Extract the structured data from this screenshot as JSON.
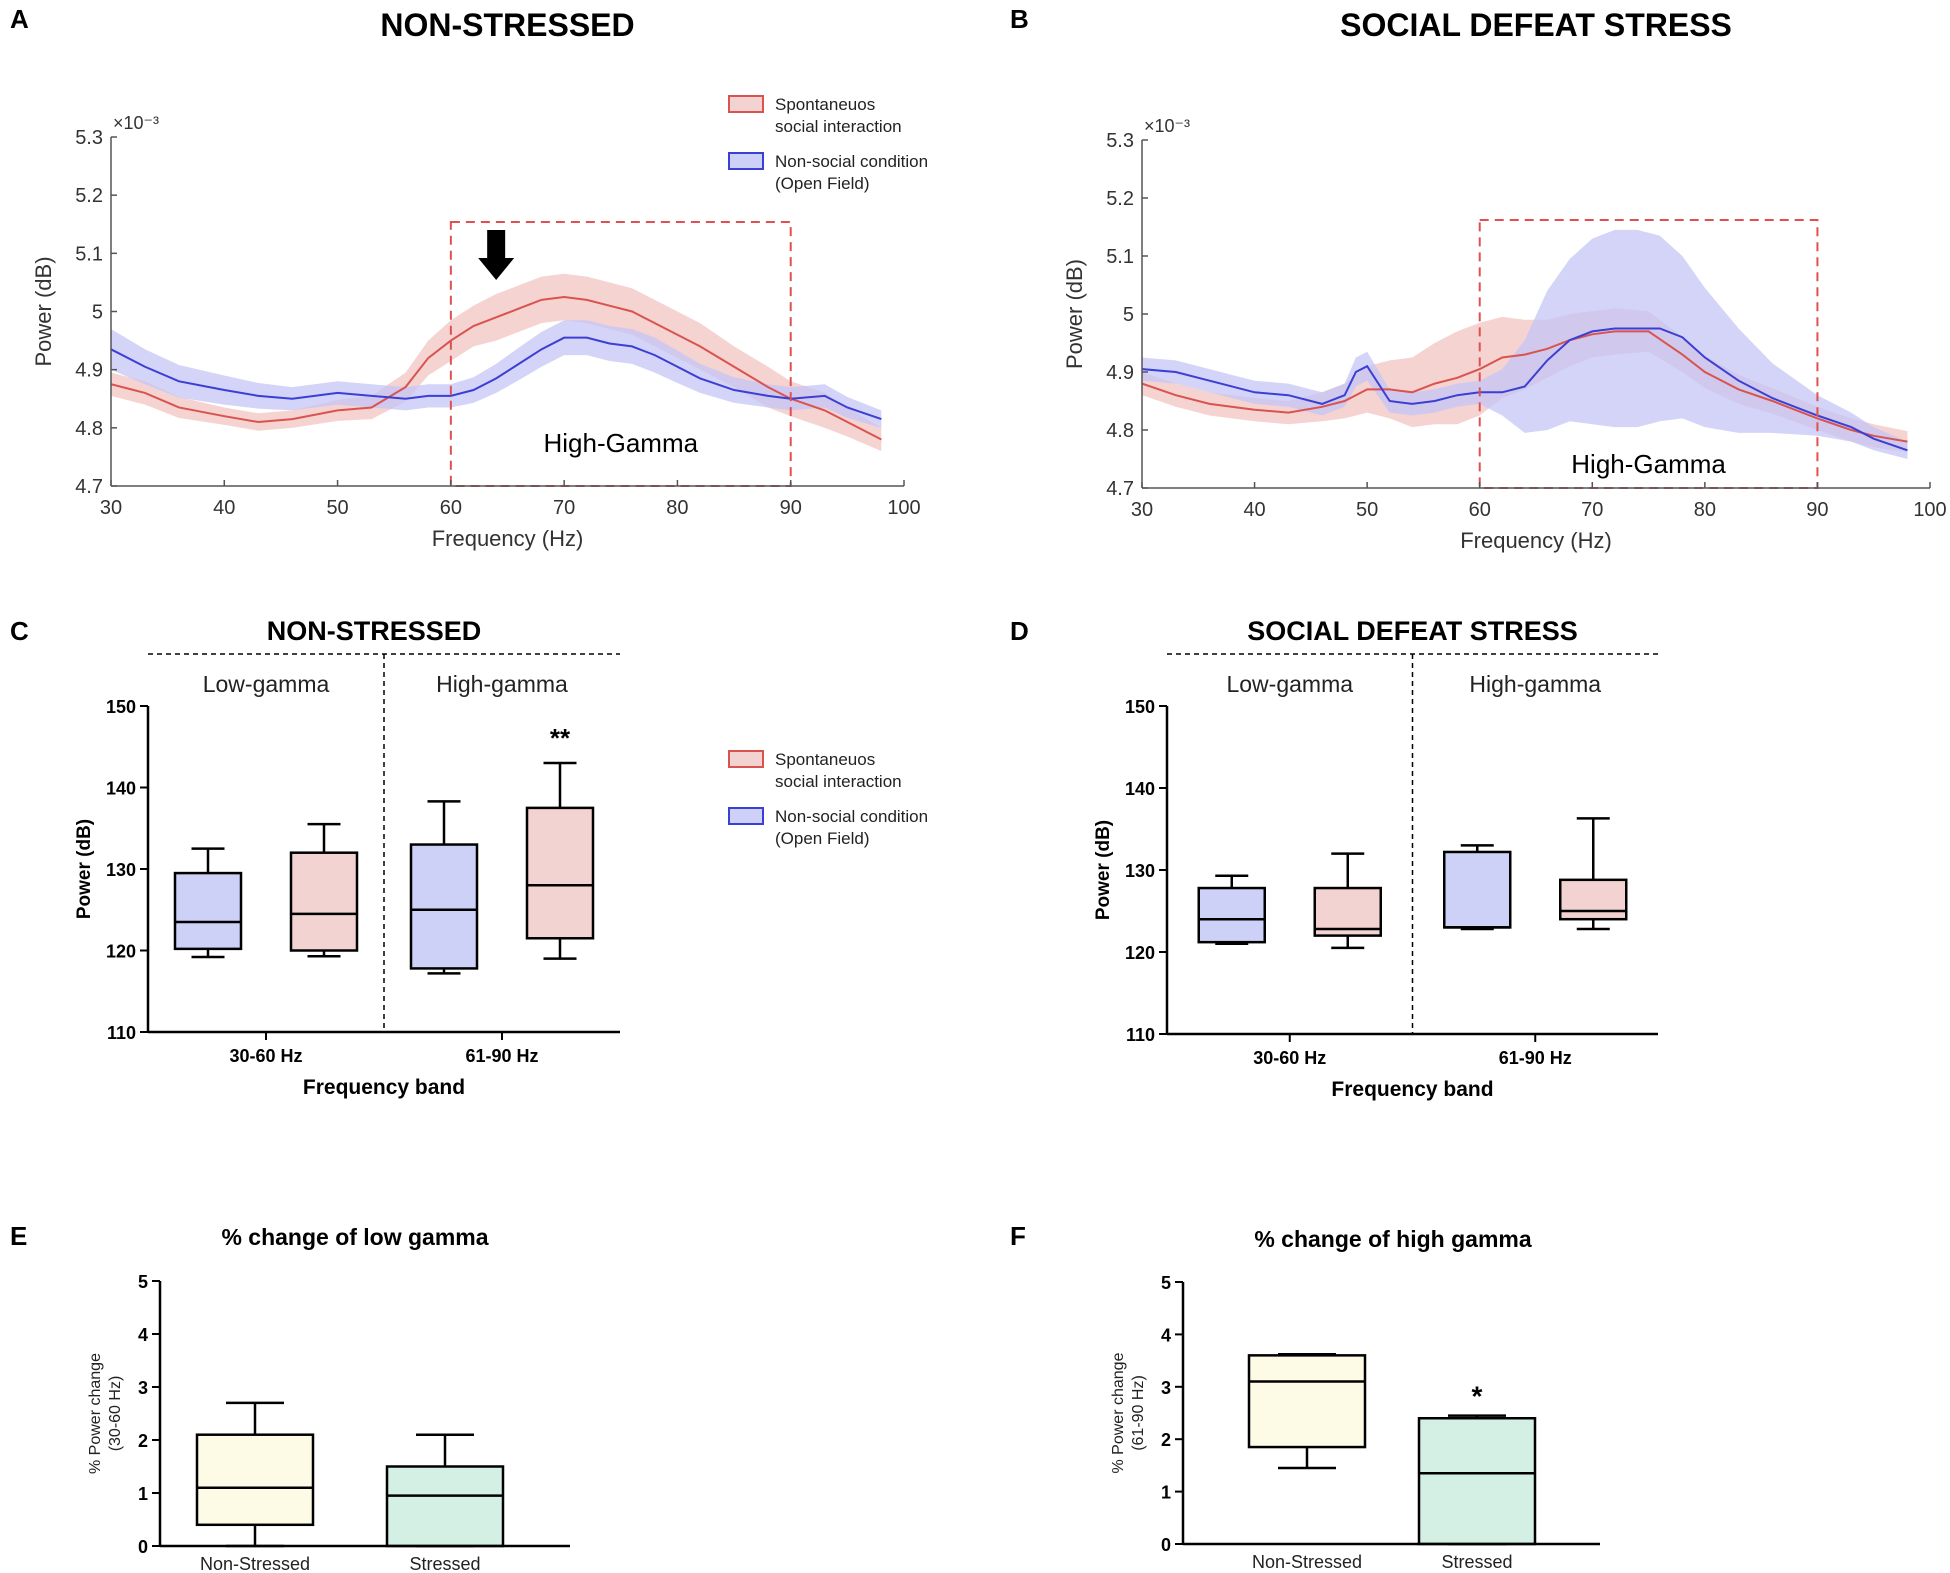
{
  "figure": {
    "panel_letters": [
      "A",
      "B",
      "C",
      "D",
      "E",
      "F"
    ]
  },
  "colors": {
    "social": "#d9534f",
    "social_fill": "#f2c4c2",
    "nonsocial": "#3b3fd4",
    "nonsocial_fill": "#c4c6f5",
    "box_social": "#f3d3d1",
    "box_nonsocial": "#cdd0f7",
    "box_nonstressed": "#fdfbe6",
    "box_stressed": "#d4efe4",
    "highlight_box": "#e05050",
    "axis": "#000000"
  },
  "legend": {
    "social_line1": "Spontaneuos",
    "social_line2": "social interaction",
    "nonsocial_line1": "Non-social condition",
    "nonsocial_line2": "(Open Field)"
  },
  "chart_data": [
    {
      "panel": "A",
      "type": "line",
      "title": "NON-STRESSED",
      "xlabel": "Frequency (Hz)",
      "ylabel": "Power (dB)",
      "exponent_label": "×10⁻³",
      "xlim": [
        30,
        100
      ],
      "ylim": [
        4.7,
        5.3
      ],
      "xticks": [
        30,
        40,
        50,
        60,
        70,
        80,
        90,
        100
      ],
      "yticks": [
        "4.7",
        "4.8",
        "4.9",
        "5",
        "5.1",
        "5.2",
        "5.3"
      ],
      "region": {
        "x": [
          60,
          90
        ],
        "label": "High-Gamma",
        "arrow_at": 64
      },
      "series": [
        {
          "name": "Spontaneuos social interaction",
          "key": "social",
          "x": [
            30,
            33,
            36,
            40,
            43,
            46,
            50,
            53,
            56,
            58,
            60,
            62,
            64,
            66,
            68,
            70,
            72,
            74,
            76,
            78,
            80,
            82,
            85,
            88,
            90,
            93,
            95,
            98
          ],
          "y": [
            4.875,
            4.86,
            4.835,
            4.82,
            4.81,
            4.815,
            4.83,
            4.835,
            4.87,
            4.92,
            4.95,
            4.975,
            4.99,
            5.005,
            5.02,
            5.025,
            5.02,
            5.01,
            5.0,
            4.98,
            4.96,
            4.94,
            4.905,
            4.87,
            4.85,
            4.83,
            4.81,
            4.78
          ],
          "err": [
            0.02,
            0.02,
            0.018,
            0.015,
            0.015,
            0.015,
            0.018,
            0.02,
            0.025,
            0.03,
            0.035,
            0.035,
            0.04,
            0.04,
            0.04,
            0.04,
            0.04,
            0.04,
            0.04,
            0.04,
            0.04,
            0.04,
            0.035,
            0.035,
            0.03,
            0.03,
            0.025,
            0.02
          ]
        },
        {
          "name": "Non-social condition (Open Field)",
          "key": "nonsocial",
          "x": [
            30,
            33,
            36,
            40,
            43,
            46,
            50,
            53,
            56,
            58,
            60,
            62,
            64,
            66,
            68,
            70,
            72,
            74,
            76,
            78,
            80,
            82,
            85,
            88,
            90,
            93,
            95,
            98
          ],
          "y": [
            4.935,
            4.905,
            4.88,
            4.865,
            4.855,
            4.85,
            4.86,
            4.855,
            4.85,
            4.855,
            4.855,
            4.865,
            4.885,
            4.91,
            4.935,
            4.955,
            4.955,
            4.945,
            4.94,
            4.925,
            4.905,
            4.885,
            4.865,
            4.855,
            4.85,
            4.855,
            4.835,
            4.815
          ],
          "err": [
            0.035,
            0.03,
            0.028,
            0.025,
            0.022,
            0.02,
            0.02,
            0.02,
            0.02,
            0.02,
            0.02,
            0.022,
            0.025,
            0.028,
            0.03,
            0.03,
            0.03,
            0.03,
            0.03,
            0.03,
            0.028,
            0.025,
            0.022,
            0.02,
            0.02,
            0.02,
            0.018,
            0.015
          ]
        }
      ]
    },
    {
      "panel": "B",
      "type": "line",
      "title": "SOCIAL DEFEAT STRESS",
      "xlabel": "Frequency (Hz)",
      "ylabel": "Power (dB)",
      "exponent_label": "×10⁻³",
      "xlim": [
        30,
        100
      ],
      "ylim": [
        4.7,
        5.3
      ],
      "xticks": [
        30,
        40,
        50,
        60,
        70,
        80,
        90,
        100
      ],
      "yticks": [
        "4.7",
        "4.8",
        "4.9",
        "5",
        "5.1",
        "5.2",
        "5.3"
      ],
      "region": {
        "x": [
          60,
          90
        ],
        "label": "High-Gamma"
      },
      "series": [
        {
          "name": "Spontaneuos social interaction",
          "key": "social",
          "x": [
            30,
            33,
            36,
            40,
            43,
            46,
            48,
            50,
            52,
            54,
            56,
            58,
            60,
            62,
            64,
            66,
            68,
            70,
            72,
            75,
            78,
            80,
            83,
            86,
            90,
            93,
            95,
            98
          ],
          "y": [
            4.88,
            4.86,
            4.845,
            4.835,
            4.83,
            4.84,
            4.85,
            4.87,
            4.87,
            4.865,
            4.88,
            4.89,
            4.905,
            4.925,
            4.93,
            4.94,
            4.955,
            4.965,
            4.97,
            4.97,
            4.93,
            4.9,
            4.87,
            4.85,
            4.82,
            4.8,
            4.79,
            4.78
          ],
          "err": [
            0.02,
            0.02,
            0.02,
            0.02,
            0.02,
            0.025,
            0.03,
            0.04,
            0.05,
            0.06,
            0.07,
            0.08,
            0.08,
            0.07,
            0.06,
            0.05,
            0.045,
            0.04,
            0.04,
            0.035,
            0.03,
            0.028,
            0.025,
            0.022,
            0.02,
            0.02,
            0.02,
            0.018
          ]
        },
        {
          "name": "Non-social condition (Open Field)",
          "key": "nonsocial",
          "x": [
            30,
            33,
            36,
            40,
            43,
            46,
            48,
            49,
            50,
            52,
            54,
            56,
            58,
            60,
            62,
            64,
            66,
            68,
            70,
            72,
            74,
            76,
            78,
            80,
            83,
            86,
            90,
            93,
            95,
            98
          ],
          "y": [
            4.905,
            4.9,
            4.885,
            4.865,
            4.86,
            4.845,
            4.86,
            4.9,
            4.91,
            4.85,
            4.845,
            4.85,
            4.86,
            4.865,
            4.865,
            4.875,
            4.92,
            4.955,
            4.97,
            4.975,
            4.975,
            4.975,
            4.96,
            4.925,
            4.885,
            4.855,
            4.825,
            4.805,
            4.785,
            4.765
          ],
          "err": [
            0.02,
            0.02,
            0.02,
            0.02,
            0.02,
            0.02,
            0.02,
            0.025,
            0.025,
            0.02,
            0.02,
            0.02,
            0.02,
            0.02,
            0.04,
            0.08,
            0.12,
            0.14,
            0.16,
            0.17,
            0.17,
            0.16,
            0.14,
            0.12,
            0.09,
            0.06,
            0.035,
            0.025,
            0.02,
            0.015
          ]
        }
      ]
    },
    {
      "panel": "C",
      "type": "box",
      "title": "NON-STRESSED",
      "xlabel": "Frequency band",
      "ylabel": "Power (dB)",
      "ylim": [
        110,
        150
      ],
      "yticks": [
        110,
        120,
        130,
        140,
        150
      ],
      "groups": [
        {
          "band_label": "Low-gamma",
          "tick_label": "30-60 Hz",
          "annotation": "",
          "boxes": [
            {
              "key": "nonsocial",
              "min": 119.2,
              "q1": 120.2,
              "median": 123.5,
              "q3": 129.5,
              "max": 132.5
            },
            {
              "key": "social",
              "min": 119.3,
              "q1": 120.0,
              "median": 124.5,
              "q3": 132.0,
              "max": 135.5
            }
          ]
        },
        {
          "band_label": "High-gamma",
          "tick_label": "61-90 Hz",
          "annotation": "**",
          "boxes": [
            {
              "key": "nonsocial",
              "min": 117.2,
              "q1": 117.8,
              "median": 125.0,
              "q3": 133.0,
              "max": 138.3
            },
            {
              "key": "social",
              "min": 119.0,
              "q1": 121.5,
              "median": 128.0,
              "q3": 137.5,
              "max": 143.0
            }
          ]
        }
      ]
    },
    {
      "panel": "D",
      "type": "box",
      "title": "SOCIAL DEFEAT STRESS",
      "xlabel": "Frequency band",
      "ylabel": "Power (dB)",
      "ylim": [
        110,
        150
      ],
      "yticks": [
        110,
        120,
        130,
        140,
        150
      ],
      "groups": [
        {
          "band_label": "Low-gamma",
          "tick_label": "30-60 Hz",
          "annotation": "",
          "boxes": [
            {
              "key": "nonsocial",
              "min": 121.0,
              "q1": 121.2,
              "median": 124.0,
              "q3": 127.8,
              "max": 129.3
            },
            {
              "key": "social",
              "min": 120.5,
              "q1": 122.0,
              "median": 122.8,
              "q3": 127.8,
              "max": 132.0
            }
          ]
        },
        {
          "band_label": "High-gamma",
          "tick_label": "61-90 Hz",
          "annotation": "",
          "boxes": [
            {
              "key": "nonsocial",
              "min": 122.8,
              "q1": 123.0,
              "median": 123.0,
              "q3": 132.2,
              "max": 133.0
            },
            {
              "key": "social",
              "min": 122.8,
              "q1": 124.0,
              "median": 125.0,
              "q3": 128.8,
              "max": 136.3
            }
          ]
        }
      ]
    },
    {
      "panel": "E",
      "type": "box",
      "title": "% change of low gamma",
      "xlabel": "",
      "ylabel_line1": "% Power change",
      "ylabel_line2": "(30-60 Hz)",
      "ylim": [
        0,
        5
      ],
      "yticks": [
        0,
        1,
        2,
        3,
        4,
        5
      ],
      "boxes": [
        {
          "label": "Non-Stressed",
          "key": "nonstressed",
          "min": 0.0,
          "q1": 0.4,
          "median": 1.1,
          "q3": 2.1,
          "max": 2.7,
          "annotation": ""
        },
        {
          "label": "Stressed",
          "key": "stressed",
          "min": 0.0,
          "q1": 0.0,
          "median": 0.95,
          "q3": 1.5,
          "max": 2.1,
          "annotation": ""
        }
      ]
    },
    {
      "panel": "F",
      "type": "box",
      "title": "% change of high gamma",
      "xlabel": "",
      "ylabel_line1": "% Power change",
      "ylabel_line2": "(61-90 Hz)",
      "ylim": [
        0,
        5
      ],
      "yticks": [
        0,
        1,
        2,
        3,
        4,
        5
      ],
      "boxes": [
        {
          "label": "Non-Stressed",
          "key": "nonstressed",
          "min": 1.45,
          "q1": 1.85,
          "median": 3.1,
          "q3": 3.6,
          "max": 3.62,
          "annotation": ""
        },
        {
          "label": "Stressed",
          "key": "stressed",
          "min": 0.0,
          "q1": 0.0,
          "median": 1.35,
          "q3": 2.4,
          "max": 2.45,
          "annotation": "*"
        }
      ]
    }
  ]
}
